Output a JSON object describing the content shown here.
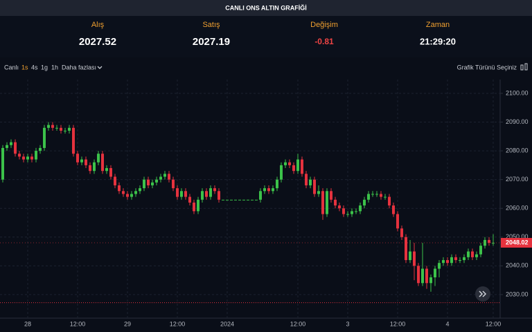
{
  "header": {
    "title": "CANLI ONS ALTIN GRAFİĞİ",
    "fields": [
      {
        "label": "Alış",
        "value": 2027.52
      },
      {
        "label": "Satış",
        "value": 2027.19
      },
      {
        "label": "Değişim",
        "value": -0.81
      },
      {
        "label": "Zaman",
        "value": "21:29:20"
      }
    ]
  },
  "toolbar": {
    "items": [
      "Canlı",
      "1s",
      "4s",
      "1g",
      "1h",
      "Daha fazlası"
    ],
    "chart_type": "Grafik Türünü Seçiniz"
  },
  "chart_data": {
    "type": "candlestick",
    "categories": [
      null,
      null,
      null,
      null,
      null,
      null,
      "28",
      null,
      null,
      null,
      null,
      null,
      null,
      null,
      null,
      null,
      null,
      null,
      "12:00",
      null,
      null,
      null,
      null,
      null,
      null,
      null,
      null,
      null,
      null,
      null,
      "29",
      null,
      null,
      null,
      null,
      null,
      null,
      null,
      null,
      null,
      null,
      null,
      "12:00",
      null,
      null,
      null,
      null,
      null,
      null,
      null,
      null,
      null,
      null,
      null,
      "2024",
      null,
      null,
      null,
      null,
      null,
      null,
      null,
      null,
      null,
      null,
      null,
      null,
      null,
      null,
      null,
      null,
      "12:00",
      null,
      null,
      null,
      null,
      null,
      null,
      null,
      null,
      null,
      null,
      null,
      "3",
      null,
      null,
      null,
      null,
      null,
      null,
      null,
      null,
      null,
      null,
      null,
      "12:00",
      null,
      null,
      null,
      null,
      null,
      null,
      null,
      null,
      null,
      null,
      null,
      "4",
      null,
      null,
      null,
      null,
      null,
      null,
      null,
      null,
      null,
      null,
      "12:00"
    ],
    "open": [
      2070,
      2081,
      2082,
      2083,
      2079,
      2078,
      2077,
      2078,
      2077,
      2080,
      2081,
      2088,
      2089,
      2088,
      2088,
      2087,
      2087,
      2088,
      2079,
      2076,
      2077,
      2075,
      2073,
      2076,
      2079,
      2073,
      2074,
      2071,
      2068,
      2066,
      2065,
      2064,
      2065,
      2066,
      2067,
      2070,
      2068,
      2069,
      2070,
      2071,
      2072,
      2070,
      2067,
      2064,
      2066,
      2064,
      2062,
      2059,
      2063,
      2066,
      2064,
      2067,
      2066,
      2063,
      2063,
      2063,
      2063,
      2063,
      2063,
      2063,
      2063,
      2063,
      2063,
      2066,
      2067,
      2066,
      2067,
      2070,
      2075,
      2076,
      2075,
      2073,
      2077,
      2072,
      2068,
      2070,
      2065,
      2066,
      2058,
      2066,
      2063,
      2061,
      2060,
      2058,
      2058,
      2059,
      2059,
      2061,
      2063,
      2065,
      2065,
      2065,
      2064,
      2064,
      2061,
      2058,
      2053,
      2050,
      2042,
      2045,
      2040,
      2034,
      2039,
      2034,
      2036,
      2039,
      2041,
      2042,
      2041,
      2043,
      2042,
      2042,
      2043,
      2045,
      2043,
      2044,
      2047,
      2049,
      2048
    ],
    "high": [
      2082,
      2083,
      2084,
      2084,
      2080,
      2079,
      2079,
      2079,
      2081,
      2082,
      2089,
      2090,
      2090,
      2089,
      2089,
      2088,
      2089,
      2089,
      2080,
      2078,
      2078,
      2076,
      2077,
      2080,
      2080,
      2075,
      2075,
      2072,
      2069,
      2067,
      2066,
      2066,
      2067,
      2068,
      2071,
      2071,
      2070,
      2071,
      2072,
      2073,
      2073,
      2071,
      2068,
      2067,
      2067,
      2065,
      2063,
      2064,
      2067,
      2067,
      2068,
      2068,
      2067,
      2063,
      2063,
      2063,
      2063,
      2063,
      2063,
      2063,
      2063,
      2063,
      2067,
      2068,
      2068,
      2068,
      2071,
      2076,
      2077,
      2077,
      2076,
      2079,
      2078,
      2073,
      2071,
      2071,
      2068,
      2067,
      2067,
      2067,
      2064,
      2062,
      2061,
      2059,
      2060,
      2060,
      2062,
      2064,
      2066,
      2066,
      2066,
      2066,
      2065,
      2065,
      2062,
      2059,
      2054,
      2051,
      2049,
      2048,
      2041,
      2048,
      2040,
      2037,
      2040,
      2042,
      2043,
      2043,
      2044,
      2044,
      2043,
      2044,
      2046,
      2046,
      2045,
      2048,
      2050,
      2050,
      2051
    ],
    "low": [
      2069,
      2080,
      2081,
      2078,
      2077,
      2076,
      2076,
      2076,
      2076,
      2079,
      2080,
      2087,
      2087,
      2087,
      2086,
      2086,
      2086,
      2078,
      2075,
      2075,
      2074,
      2072,
      2072,
      2075,
      2072,
      2072,
      2070,
      2067,
      2065,
      2064,
      2063,
      2063,
      2064,
      2065,
      2066,
      2067,
      2067,
      2068,
      2069,
      2070,
      2069,
      2066,
      2063,
      2063,
      2063,
      2061,
      2058,
      2058,
      2062,
      2063,
      2063,
      2065,
      2062,
      2063,
      2063,
      2063,
      2063,
      2063,
      2063,
      2063,
      2063,
      2063,
      2062,
      2065,
      2065,
      2065,
      2066,
      2069,
      2074,
      2074,
      2072,
      2072,
      2071,
      2067,
      2067,
      2064,
      2064,
      2056,
      2057,
      2062,
      2060,
      2059,
      2057,
      2057,
      2057,
      2058,
      2058,
      2060,
      2062,
      2064,
      2064,
      2063,
      2063,
      2060,
      2057,
      2052,
      2049,
      2041,
      2041,
      2035,
      2033,
      2033,
      2032,
      2031,
      2033,
      2036,
      2040,
      2040,
      2040,
      2041,
      2041,
      2041,
      2042,
      2042,
      2042,
      2043,
      2046,
      2047,
      2047
    ],
    "close": [
      2081,
      2082,
      2083,
      2079,
      2078,
      2077,
      2078,
      2077,
      2080,
      2081,
      2088,
      2089,
      2088,
      2088,
      2087,
      2087,
      2088,
      2079,
      2076,
      2077,
      2075,
      2073,
      2076,
      2079,
      2073,
      2074,
      2071,
      2068,
      2066,
      2065,
      2064,
      2065,
      2066,
      2067,
      2070,
      2068,
      2069,
      2070,
      2071,
      2072,
      2070,
      2067,
      2064,
      2066,
      2064,
      2062,
      2059,
      2063,
      2066,
      2064,
      2067,
      2066,
      2063,
      2063,
      2063,
      2063,
      2063,
      2063,
      2063,
      2063,
      2063,
      2063,
      2066,
      2067,
      2066,
      2067,
      2070,
      2075,
      2076,
      2075,
      2073,
      2077,
      2072,
      2068,
      2070,
      2065,
      2066,
      2058,
      2066,
      2063,
      2061,
      2060,
      2058,
      2058,
      2059,
      2059,
      2061,
      2063,
      2065,
      2065,
      2065,
      2064,
      2064,
      2061,
      2058,
      2053,
      2050,
      2042,
      2045,
      2040,
      2034,
      2039,
      2034,
      2036,
      2039,
      2041,
      2042,
      2041,
      2043,
      2042,
      2042,
      2043,
      2045,
      2043,
      2044,
      2047,
      2049,
      2048,
      2048.02
    ],
    "up_color": "#3cc24a",
    "down_color": "#e5323e",
    "ylim": [
      2021.8,
      2104.8
    ],
    "yticks": [
      {
        "value": 2030,
        "label": "2030.00"
      },
      {
        "value": 2040,
        "label": "2040.00"
      },
      {
        "value": 2050,
        "label": "2050.00"
      },
      {
        "value": 2060,
        "label": "2060.00"
      },
      {
        "value": 2070,
        "label": "2070.00"
      },
      {
        "value": 2080,
        "label": "2080.00"
      },
      {
        "value": 2090,
        "label": "2090.00"
      },
      {
        "value": 2100,
        "label": "2100.00"
      }
    ],
    "grid": true
  }
}
